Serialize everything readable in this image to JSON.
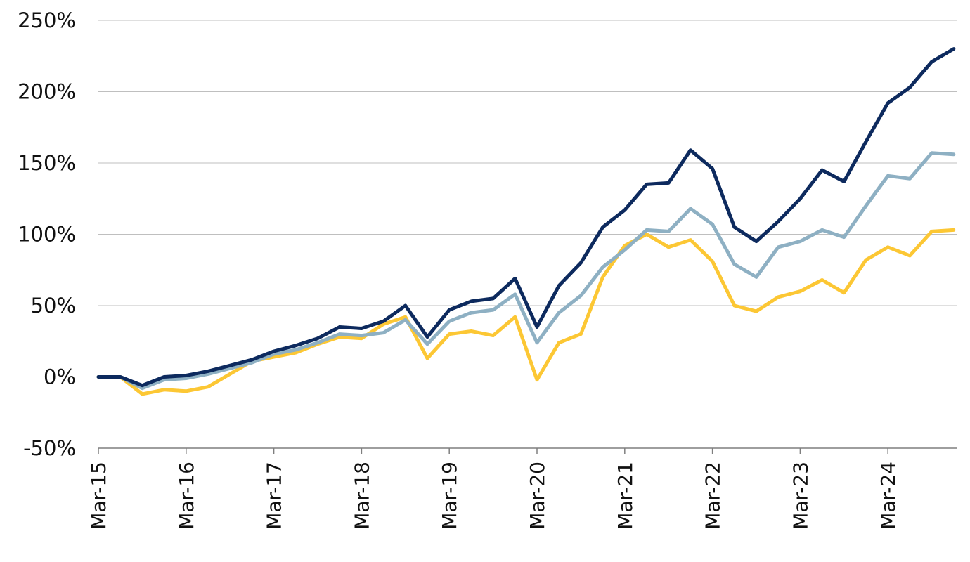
{
  "colors": {
    "series_navy": "#0d2a5e",
    "series_steel": "#8eb0c3",
    "series_gold": "#fcc734",
    "grid": "#bfbfbf",
    "axis": "#7f7f7f"
  },
  "chart_data": {
    "type": "line",
    "title": "",
    "xlabel": "",
    "ylabel": "",
    "ylim": [
      -50,
      250
    ],
    "y_unit": "%",
    "y_ticks": [
      -50,
      0,
      50,
      100,
      150,
      200,
      250
    ],
    "y_tick_labels": [
      "-50%",
      "0%",
      "50%",
      "100%",
      "150%",
      "200%",
      "250%"
    ],
    "grid": true,
    "legend": "none",
    "x_dates": [
      "2015-03",
      "2015-06",
      "2015-09",
      "2015-12",
      "2016-03",
      "2016-06",
      "2016-09",
      "2016-12",
      "2017-03",
      "2017-06",
      "2017-09",
      "2017-12",
      "2018-03",
      "2018-06",
      "2018-09",
      "2018-12",
      "2019-03",
      "2019-06",
      "2019-09",
      "2019-12",
      "2020-03",
      "2020-06",
      "2020-09",
      "2020-12",
      "2021-03",
      "2021-06",
      "2021-09",
      "2021-12",
      "2022-03",
      "2022-06",
      "2022-09",
      "2022-12",
      "2023-03",
      "2023-06",
      "2023-09",
      "2023-12",
      "2024-03",
      "2024-06",
      "2024-09",
      "2024-12"
    ],
    "x_tick_dates": [
      "2015-03",
      "2016-03",
      "2017-03",
      "2018-03",
      "2019-03",
      "2020-03",
      "2021-03",
      "2022-03",
      "2023-03",
      "2024-03"
    ],
    "x_tick_labels": [
      "Mar-15",
      "Mar-16",
      "Mar-17",
      "Mar-18",
      "Mar-19",
      "Mar-20",
      "Mar-21",
      "Mar-22",
      "Mar-23",
      "Mar-24"
    ],
    "series": [
      {
        "color": "#0d2a5e",
        "values": [
          0,
          0,
          -6,
          0,
          1,
          4,
          8,
          12,
          18,
          22,
          27,
          35,
          34,
          39,
          50,
          28,
          47,
          53,
          55,
          69,
          35,
          64,
          80,
          105,
          117,
          135,
          136,
          159,
          146,
          105,
          95,
          109,
          125,
          145,
          137,
          165,
          192,
          203,
          221,
          230
        ]
      },
      {
        "color": "#8eb0c3",
        "values": [
          0,
          0,
          -8,
          -2,
          -1,
          2,
          6,
          10,
          16,
          19,
          24,
          30,
          29,
          31,
          40,
          23,
          39,
          45,
          47,
          58,
          24,
          45,
          57,
          77,
          89,
          103,
          102,
          118,
          107,
          79,
          70,
          91,
          95,
          103,
          98,
          120,
          141,
          139,
          157,
          156
        ]
      },
      {
        "color": "#fcc734",
        "values": [
          0,
          0,
          -12,
          -9,
          -10,
          -7,
          2,
          11,
          14,
          17,
          23,
          28,
          27,
          37,
          42,
          13,
          30,
          32,
          29,
          42,
          -2,
          24,
          30,
          70,
          92,
          100,
          91,
          96,
          81,
          50,
          46,
          56,
          60,
          68,
          59,
          82,
          91,
          85,
          102,
          103
        ]
      }
    ]
  }
}
